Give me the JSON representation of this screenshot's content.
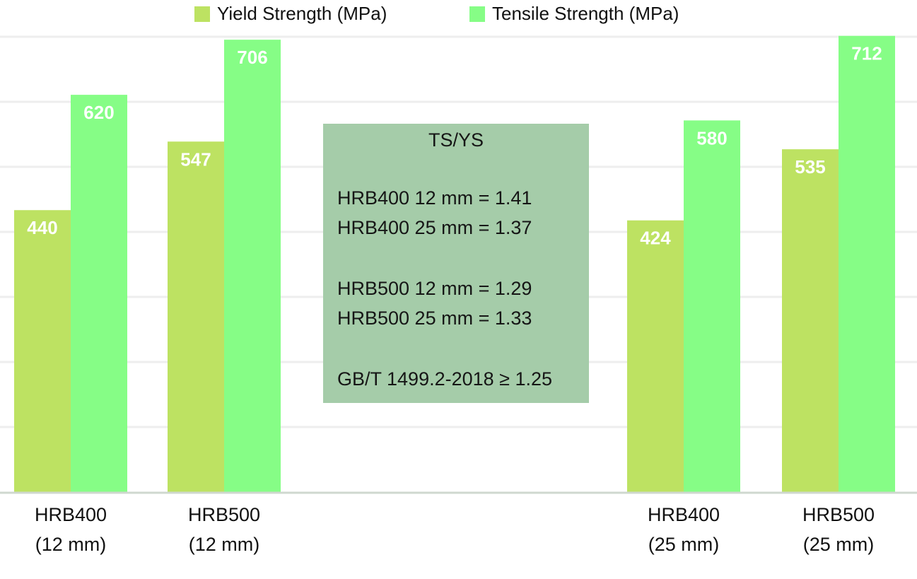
{
  "chart_data": {
    "type": "bar",
    "categories": [
      [
        "HRB400",
        "(12 mm)"
      ],
      [
        "HRB500",
        "(12 mm)"
      ],
      [
        "HRB400",
        "(25 mm)"
      ],
      [
        "HRB500",
        "(25 mm)"
      ]
    ],
    "series": [
      {
        "name": "Yield Strength (MPa)",
        "values": [
          440,
          547,
          424,
          535
        ],
        "color": "#bde262"
      },
      {
        "name": "Tensile Strength (MPa)",
        "values": [
          620,
          706,
          580,
          712
        ],
        "color": "#86fd86"
      }
    ],
    "ylim": [
      0,
      720
    ],
    "grid": true,
    "legend_position": "top-center",
    "data_label_color": "#ffffff"
  },
  "legend": {
    "yield_label": "Yield Strength (MPa)",
    "tensile_label": "Tensile Strength (MPa)"
  },
  "note": {
    "title": "TS/YS",
    "lines": [
      "HRB400 12 mm = 1.41",
      "HRB400 25 mm = 1.37",
      "HRB500 12 mm = 1.29",
      "HRB500 25 mm = 1.33",
      "GB/T 1499.2-2018 ≥ 1.25"
    ],
    "background": "#a5cca9"
  }
}
